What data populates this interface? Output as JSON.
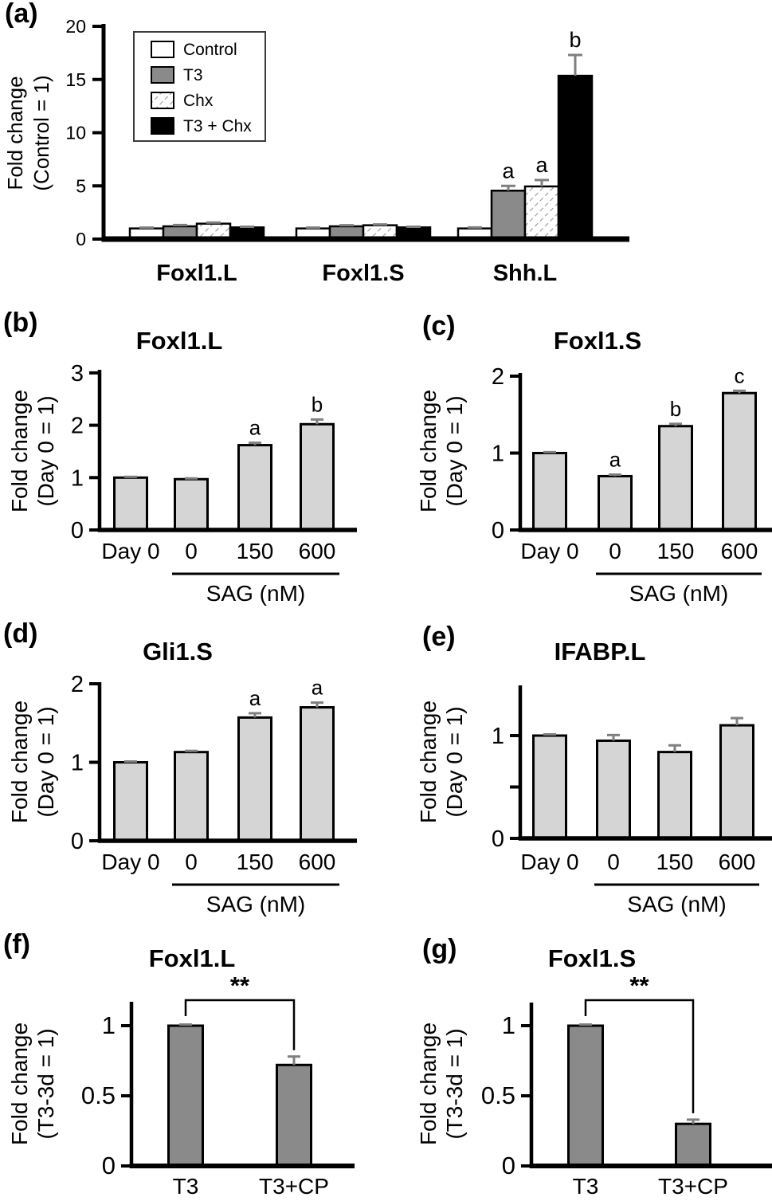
{
  "palette": {
    "control_fill": "#ffffff",
    "t3_fill": "#8a8a8a",
    "t3chx_fill": "#000000",
    "chx_hatch_line": "#999999",
    "light_bar_fill": "#d5d5d5",
    "dark_bar_fill": "#8a8a8a",
    "error_bar": "#7f7f7f",
    "axis": "#000000"
  },
  "chart_data": [
    {
      "panel": "a",
      "label": "(a)",
      "title": null,
      "type": "bar",
      "ylabel_lines": [
        "Fold change",
        "(Control = 1)"
      ],
      "ylim": [
        0,
        20
      ],
      "yticks": [
        {
          "v": 0,
          "label": "0"
        },
        {
          "v": 5,
          "label": "5"
        },
        {
          "v": 10,
          "label": "10"
        },
        {
          "v": 15,
          "label": "15"
        },
        {
          "v": 20,
          "label": "20"
        }
      ],
      "categories": [
        "Foxl1.L",
        "Foxl1.S",
        "Shh.L"
      ],
      "legend": [
        {
          "label": "Control",
          "style": "white"
        },
        {
          "label": "T3",
          "style": "gray"
        },
        {
          "label": "Chx",
          "style": "hatch"
        },
        {
          "label": "T3 + Chx",
          "style": "black"
        }
      ],
      "series": [
        {
          "name": "Control",
          "style": "white",
          "values": [
            1.0,
            1.0,
            1.0
          ],
          "errors": [
            0.08,
            0.08,
            0.1
          ],
          "letters": [
            "",
            "",
            ""
          ]
        },
        {
          "name": "T3",
          "style": "gray",
          "values": [
            1.2,
            1.2,
            4.55
          ],
          "errors": [
            0.12,
            0.1,
            0.45
          ],
          "letters": [
            "",
            "",
            "a"
          ]
        },
        {
          "name": "Chx",
          "style": "hatch",
          "values": [
            1.45,
            1.3,
            4.95
          ],
          "errors": [
            0.1,
            0.08,
            0.6
          ],
          "letters": [
            "",
            "",
            "a"
          ]
        },
        {
          "name": "T3 + Chx",
          "style": "black",
          "values": [
            1.1,
            1.1,
            15.35
          ],
          "errors": [
            0.06,
            0.06,
            1.95
          ],
          "letters": [
            "",
            "",
            "b"
          ]
        }
      ]
    },
    {
      "panel": "b",
      "label": "(b)",
      "title": "Foxl1.L",
      "type": "bar",
      "ylabel_lines": [
        "Fold change",
        "(Day 0 = 1)"
      ],
      "ylim": [
        0,
        3
      ],
      "yticks": [
        {
          "v": 0,
          "label": "0"
        },
        {
          "v": 1,
          "label": "1"
        },
        {
          "v": 2,
          "label": "2"
        },
        {
          "v": 3,
          "label": "3"
        }
      ],
      "categories": [
        "Day 0",
        "0",
        "150",
        "600"
      ],
      "bar_style": "light",
      "values": [
        1.0,
        0.97,
        1.62,
        2.02
      ],
      "errors": [
        0.015,
        0.015,
        0.045,
        0.09
      ],
      "letters": [
        "",
        "",
        "a",
        "b"
      ],
      "group_axis": {
        "label": "SAG (nM)",
        "from_index": 1,
        "to_index": 3
      }
    },
    {
      "panel": "c",
      "label": "(c)",
      "title": "Foxl1.S",
      "type": "bar",
      "ylabel_lines": [
        "Fold change",
        "(Day 0 = 1)"
      ],
      "ylim": [
        0,
        2
      ],
      "yticks": [
        {
          "v": 0,
          "label": "0"
        },
        {
          "v": 1,
          "label": "1"
        },
        {
          "v": 2,
          "label": "2"
        }
      ],
      "categories": [
        "Day 0",
        "0",
        "150",
        "600"
      ],
      "bar_style": "light",
      "values": [
        1.0,
        0.7,
        1.35,
        1.78
      ],
      "errors": [
        0.012,
        0.02,
        0.03,
        0.03
      ],
      "letters": [
        "",
        "a",
        "b",
        "c"
      ],
      "group_axis": {
        "label": "SAG (nM)",
        "from_index": 1,
        "to_index": 3
      }
    },
    {
      "panel": "d",
      "label": "(d)",
      "title": "Gli1.S",
      "type": "bar",
      "ylabel_lines": [
        "Fold change",
        "(Day 0 = 1)"
      ],
      "ylim": [
        0,
        2
      ],
      "yticks": [
        {
          "v": 0,
          "label": "0"
        },
        {
          "v": 1,
          "label": "1"
        },
        {
          "v": 2,
          "label": "2"
        }
      ],
      "categories": [
        "Day 0",
        "0",
        "150",
        "600"
      ],
      "bar_style": "light",
      "values": [
        1.0,
        1.13,
        1.57,
        1.7
      ],
      "errors": [
        0.01,
        0.015,
        0.055,
        0.06
      ],
      "letters": [
        "",
        "",
        "a",
        "a"
      ],
      "group_axis": {
        "label": "SAG (nM)",
        "from_index": 1,
        "to_index": 3
      }
    },
    {
      "panel": "e",
      "label": "(e)",
      "title": "IFABP.L",
      "type": "bar",
      "ylabel_lines": [
        "Fold change",
        "(Day 0 = 1)"
      ],
      "ylim": [
        0,
        1.5
      ],
      "yticks": [
        {
          "v": 0,
          "label": "0"
        },
        {
          "v": 0.5,
          "label": ""
        },
        {
          "v": 1,
          "label": "1"
        }
      ],
      "categories": [
        "Day 0",
        "0",
        "150",
        "600"
      ],
      "bar_style": "light",
      "values": [
        1.0,
        0.95,
        0.84,
        1.1
      ],
      "errors": [
        0.012,
        0.055,
        0.065,
        0.07
      ],
      "letters": [
        "",
        "",
        "",
        ""
      ],
      "group_axis": {
        "label": "SAG (nM)",
        "from_index": 1,
        "to_index": 3
      }
    },
    {
      "panel": "f",
      "label": "(f)",
      "title": "Foxl1.L",
      "type": "bar",
      "ylabel_lines": [
        "Fold change",
        "(T3-3d = 1)"
      ],
      "ylim": [
        0,
        1.18
      ],
      "yticks": [
        {
          "v": 0,
          "label": "0"
        },
        {
          "v": 0.5,
          "label": "0.5"
        },
        {
          "v": 1,
          "label": "1"
        }
      ],
      "categories": [
        "T3",
        "T3+CP"
      ],
      "bar_style": "dark",
      "values": [
        1.0,
        0.72
      ],
      "errors": [
        0.008,
        0.06
      ],
      "letters": [
        "",
        ""
      ],
      "significance": {
        "label": "**",
        "between": [
          "T3",
          "T3+CP"
        ]
      }
    },
    {
      "panel": "g",
      "label": "(g)",
      "title": "Foxl1.S",
      "type": "bar",
      "ylabel_lines": [
        "Fold change",
        "(T3-3d = 1)"
      ],
      "ylim": [
        0,
        1.18
      ],
      "yticks": [
        {
          "v": 0,
          "label": "0"
        },
        {
          "v": 0.5,
          "label": "0.5"
        },
        {
          "v": 1,
          "label": "1"
        }
      ],
      "categories": [
        "T3",
        "T3+CP"
      ],
      "bar_style": "dark",
      "values": [
        1.0,
        0.3
      ],
      "errors": [
        0.008,
        0.03
      ],
      "letters": [
        "",
        ""
      ],
      "significance": {
        "label": "**",
        "between": [
          "T3",
          "T3+CP"
        ]
      }
    }
  ]
}
